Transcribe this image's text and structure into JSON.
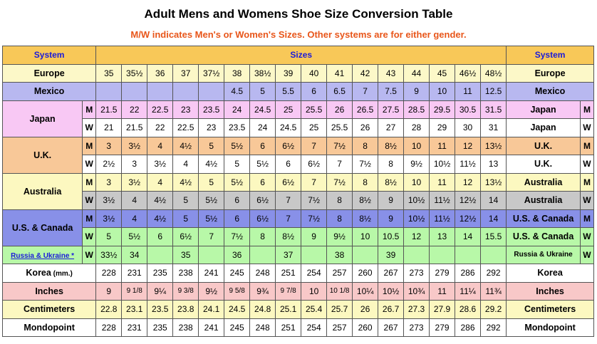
{
  "title": "Adult Mens and Womens Shoe Size Conversion Table",
  "subtitle": "M/W indicates Men's or Women's Sizes. Other systems are for either gender.",
  "header": {
    "system": "System",
    "sizes": "Sizes",
    "system_right": "System"
  },
  "rows": [
    {
      "id": "europe",
      "label": "Europe",
      "right": "Europe",
      "mw": "",
      "bg": "#fcf8c8",
      "values": [
        "35",
        "35½",
        "36",
        "37",
        "37½",
        "38",
        "38½",
        "39",
        "40",
        "41",
        "42",
        "43",
        "44",
        "45",
        "46½",
        "48½"
      ]
    },
    {
      "id": "mexico",
      "label": "Mexico",
      "right": "Mexico",
      "mw": "",
      "bg": "#b8b8f0",
      "values": [
        "",
        "",
        "",
        "",
        "",
        "4.5",
        "5",
        "5.5",
        "6",
        "6.5",
        "7",
        "7.5",
        "9",
        "10",
        "11",
        "12.5"
      ]
    },
    {
      "id": "japan-m",
      "label": "Japan",
      "right": "Japan",
      "mw": "M",
      "bg": "#f8c8f4",
      "values": [
        "21.5",
        "22",
        "22.5",
        "23",
        "23.5",
        "24",
        "24.5",
        "25",
        "25.5",
        "26",
        "26.5",
        "27.5",
        "28.5",
        "29.5",
        "30.5",
        "31.5"
      ]
    },
    {
      "id": "japan-w",
      "label": "",
      "right": "Japan",
      "mw": "W",
      "bg": "#ffffff",
      "values": [
        "21",
        "21.5",
        "22",
        "22.5",
        "23",
        "23.5",
        "24",
        "24.5",
        "25",
        "25.5",
        "26",
        "27",
        "28",
        "29",
        "30",
        "31"
      ]
    },
    {
      "id": "uk-m",
      "label": "U.K.",
      "right": "U.K.",
      "mw": "M",
      "bg": "#f8c898",
      "values": [
        "3",
        "3½",
        "4",
        "4½",
        "5",
        "5½",
        "6",
        "6½",
        "7",
        "7½",
        "8",
        "8½",
        "10",
        "11",
        "12",
        "13½"
      ]
    },
    {
      "id": "uk-w",
      "label": "",
      "right": "U.K.",
      "mw": "W",
      "bg": "#ffffff",
      "values": [
        "2½",
        "3",
        "3½",
        "4",
        "4½",
        "5",
        "5½",
        "6",
        "6½",
        "7",
        "7½",
        "8",
        "9½",
        "10½",
        "11½",
        "13"
      ]
    },
    {
      "id": "au-m",
      "label": "Australia",
      "right": "Australia",
      "mw": "M",
      "bg": "#fcf8c0",
      "values": [
        "3",
        "3½",
        "4",
        "4½",
        "5",
        "5½",
        "6",
        "6½",
        "7",
        "7½",
        "8",
        "8½",
        "10",
        "11",
        "12",
        "13½"
      ]
    },
    {
      "id": "au-w",
      "label": "",
      "right": "Australia",
      "mw": "W",
      "bg": "#c8c8c8",
      "values": [
        "3½",
        "4",
        "4½",
        "5",
        "5½",
        "6",
        "6½",
        "7",
        "7½",
        "8",
        "8½",
        "9",
        "10½",
        "11½",
        "12½",
        "14"
      ]
    },
    {
      "id": "us-m",
      "label": "U.S. & Canada",
      "right": "U.S. & Canada",
      "mw": "M",
      "bg": "#8890e8",
      "values": [
        "3½",
        "4",
        "4½",
        "5",
        "5½",
        "6",
        "6½",
        "7",
        "7½",
        "8",
        "8½",
        "9",
        "10½",
        "11½",
        "12½",
        "14"
      ]
    },
    {
      "id": "us-w",
      "label": "",
      "right": "U.S. & Canada",
      "mw": "W",
      "bg": "#b8f8a8",
      "values": [
        "5",
        "5½",
        "6",
        "6½",
        "7",
        "7½",
        "8",
        "8½",
        "9",
        "9½",
        "10",
        "10.5",
        "12",
        "13",
        "14",
        "15.5"
      ]
    },
    {
      "id": "ru",
      "label": "Russia & Ukraine *",
      "right": "Russia & Ukraine",
      "mw": "W",
      "bg": "#b8f8a8",
      "values": [
        "33½",
        "34",
        "",
        "35",
        "",
        "36",
        "",
        "37",
        "",
        "38",
        "",
        "39",
        "",
        "",
        "",
        ""
      ]
    },
    {
      "id": "korea",
      "label": "Korea",
      "label_suffix": "(mm.)",
      "right": "Korea",
      "mw": "",
      "bg": "#ffffff",
      "values": [
        "228",
        "231",
        "235",
        "238",
        "241",
        "245",
        "248",
        "251",
        "254",
        "257",
        "260",
        "267",
        "273",
        "279",
        "286",
        "292"
      ]
    },
    {
      "id": "inches",
      "label": "Inches",
      "right": "Inches",
      "mw": "",
      "bg": "#f8c8c8",
      "values": [
        "9",
        "9 1/8",
        "9¼",
        "9 3/8",
        "9½",
        "9 5/8",
        "9¾",
        "9 7/8",
        "10",
        "10 1/8",
        "10¼",
        "10½",
        "10¾",
        "11",
        "11¼",
        "11¾"
      ]
    },
    {
      "id": "cm",
      "label": "Centimeters",
      "right": "Centimeters",
      "mw": "",
      "bg": "#fcf8c0",
      "values": [
        "22.8",
        "23.1",
        "23.5",
        "23.8",
        "24.1",
        "24.5",
        "24.8",
        "25.1",
        "25.4",
        "25.7",
        "26",
        "26.7",
        "27.3",
        "27.9",
        "28.6",
        "29.2"
      ]
    },
    {
      "id": "mondo",
      "label": "Mondopoint",
      "right": "Mondopoint",
      "mw": "",
      "bg": "#ffffff",
      "values": [
        "228",
        "231",
        "235",
        "238",
        "241",
        "245",
        "248",
        "251",
        "254",
        "257",
        "260",
        "267",
        "273",
        "279",
        "286",
        "292"
      ]
    }
  ]
}
